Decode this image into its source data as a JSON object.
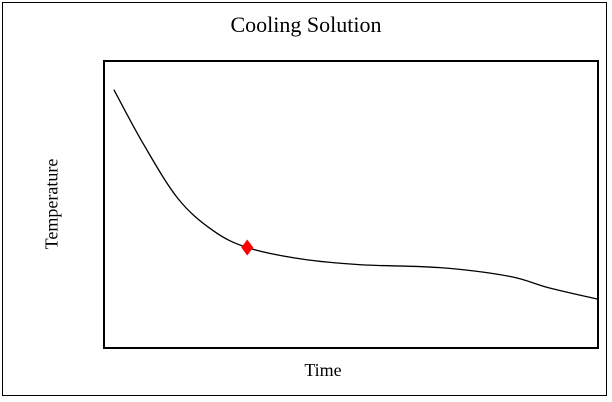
{
  "chart_data": {
    "type": "line",
    "title": "Cooling Solution",
    "xlabel": "Time",
    "ylabel": "Temperature",
    "xlim": [
      0,
      10
    ],
    "ylim": [
      0,
      10
    ],
    "grid": false,
    "legend": "none",
    "series": [
      {
        "x": [
          0.2,
          0.8,
          1.5,
          2.2,
          2.9,
          4.0,
          5.2,
          6.8,
          8.2,
          9.0,
          10.0
        ],
        "y": [
          9.0,
          7.1,
          5.2,
          4.1,
          3.5,
          3.1,
          2.9,
          2.8,
          2.5,
          2.1,
          1.7
        ],
        "color": "#000000"
      }
    ],
    "markers": [
      {
        "x": 2.9,
        "y": 3.5,
        "shape": "diamond",
        "color": "#ff0000"
      }
    ]
  }
}
